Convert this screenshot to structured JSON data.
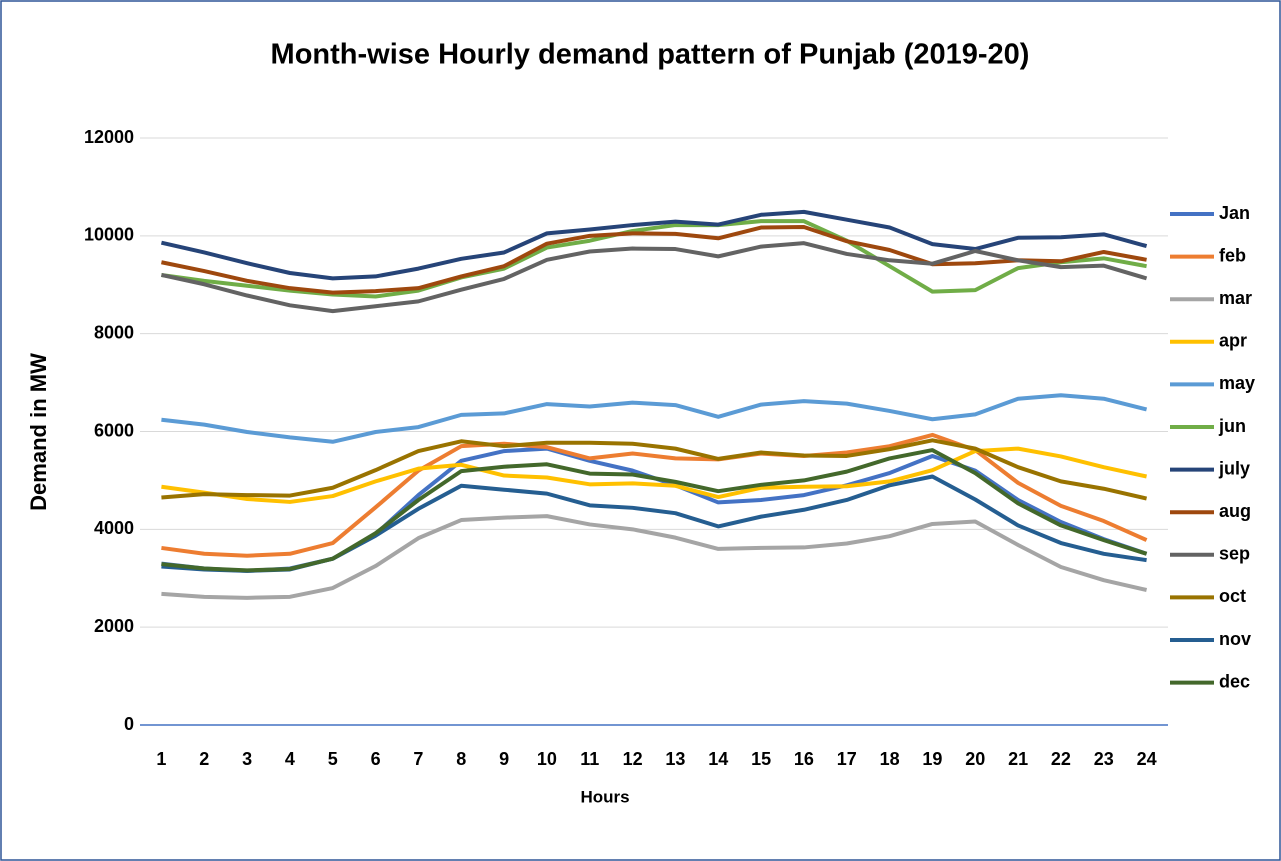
{
  "chart_data": {
    "type": "line",
    "title": "Month-wise Hourly demand pattern of Punjab (2019-20)",
    "x_label": "Hours",
    "y_label": "Demand in MW",
    "categories": [
      "1",
      "2",
      "3",
      "4",
      "5",
      "6",
      "7",
      "8",
      "9",
      "10",
      "11",
      "12",
      "13",
      "14",
      "15",
      "16",
      "17",
      "18",
      "19",
      "20",
      "21",
      "22",
      "23",
      "24"
    ],
    "ylim": [
      0,
      12000
    ],
    "yticks": [
      0,
      2000,
      4000,
      6000,
      8000,
      10000,
      12000
    ],
    "grid": true,
    "legend": "right",
    "series": [
      {
        "name": "Jan",
        "color": "#4472c4",
        "values": [
          3300,
          3200,
          3150,
          3200,
          3400,
          3900,
          4700,
          5400,
          5600,
          5650,
          5400,
          5200,
          4900,
          4550,
          4600,
          4700,
          4900,
          5150,
          5500,
          5200,
          4600,
          4150,
          3800,
          3500
        ]
      },
      {
        "name": "feb",
        "color": "#ed7d31",
        "values": [
          3620,
          3500,
          3460,
          3500,
          3720,
          4450,
          5200,
          5700,
          5750,
          5680,
          5450,
          5550,
          5450,
          5430,
          5550,
          5500,
          5570,
          5700,
          5930,
          5620,
          4950,
          4480,
          4170,
          3780
        ]
      },
      {
        "name": "mar",
        "color": "#a5a5a5",
        "values": [
          2680,
          2620,
          2600,
          2620,
          2800,
          3250,
          3820,
          4190,
          4240,
          4270,
          4100,
          4000,
          3830,
          3600,
          3620,
          3630,
          3710,
          3860,
          4110,
          4160,
          3680,
          3230,
          2960,
          2760
        ]
      },
      {
        "name": "apr",
        "color": "#ffc000",
        "values": [
          4870,
          4750,
          4620,
          4560,
          4680,
          4980,
          5240,
          5320,
          5100,
          5060,
          4920,
          4940,
          4890,
          4660,
          4850,
          4870,
          4880,
          4980,
          5210,
          5600,
          5650,
          5490,
          5270,
          5080
        ]
      },
      {
        "name": "may",
        "color": "#5b9bd5",
        "values": [
          6240,
          6140,
          5990,
          5880,
          5790,
          5990,
          6090,
          6340,
          6370,
          6560,
          6510,
          6590,
          6540,
          6300,
          6550,
          6620,
          6570,
          6420,
          6250,
          6350,
          6670,
          6740,
          6670,
          6450
        ]
      },
      {
        "name": "jun",
        "color": "#70ad47",
        "values": [
          9200,
          9080,
          8980,
          8880,
          8800,
          8760,
          8880,
          9150,
          9330,
          9760,
          9900,
          10100,
          10220,
          10220,
          10300,
          10300,
          9900,
          9380,
          8860,
          8890,
          9340,
          9460,
          9540,
          9380
        ]
      },
      {
        "name": "july",
        "color": "#264478",
        "values": [
          9860,
          9660,
          9440,
          9240,
          9130,
          9170,
          9330,
          9530,
          9660,
          10050,
          10130,
          10220,
          10290,
          10230,
          10430,
          10490,
          10330,
          10170,
          9830,
          9730,
          9960,
          9970,
          10030,
          9790
        ]
      },
      {
        "name": "aug",
        "color": "#9e480e",
        "values": [
          9460,
          9280,
          9080,
          8930,
          8840,
          8870,
          8930,
          9170,
          9380,
          9840,
          10000,
          10050,
          10040,
          9950,
          10170,
          10180,
          9890,
          9710,
          9420,
          9440,
          9500,
          9480,
          9670,
          9510
        ]
      },
      {
        "name": "sep",
        "color": "#636363",
        "values": [
          9200,
          9010,
          8780,
          8580,
          8460,
          8560,
          8660,
          8900,
          9120,
          9510,
          9680,
          9740,
          9730,
          9580,
          9780,
          9850,
          9630,
          9500,
          9430,
          9690,
          9500,
          9360,
          9390,
          9130
        ]
      },
      {
        "name": "oct",
        "color": "#997300",
        "values": [
          4650,
          4720,
          4700,
          4690,
          4850,
          5210,
          5600,
          5800,
          5700,
          5770,
          5770,
          5750,
          5650,
          5440,
          5570,
          5510,
          5500,
          5640,
          5820,
          5650,
          5270,
          4980,
          4830,
          4630
        ]
      },
      {
        "name": "nov",
        "color": "#255e91",
        "values": [
          3240,
          3180,
          3150,
          3180,
          3400,
          3870,
          4420,
          4890,
          4810,
          4730,
          4490,
          4440,
          4330,
          4060,
          4260,
          4400,
          4600,
          4900,
          5080,
          4610,
          4080,
          3720,
          3500,
          3370
        ]
      },
      {
        "name": "dec",
        "color": "#43682b",
        "values": [
          3290,
          3200,
          3160,
          3190,
          3400,
          3920,
          4600,
          5190,
          5280,
          5330,
          5140,
          5120,
          4970,
          4780,
          4910,
          5000,
          5180,
          5450,
          5620,
          5150,
          4530,
          4080,
          3780,
          3500
        ]
      }
    ]
  }
}
